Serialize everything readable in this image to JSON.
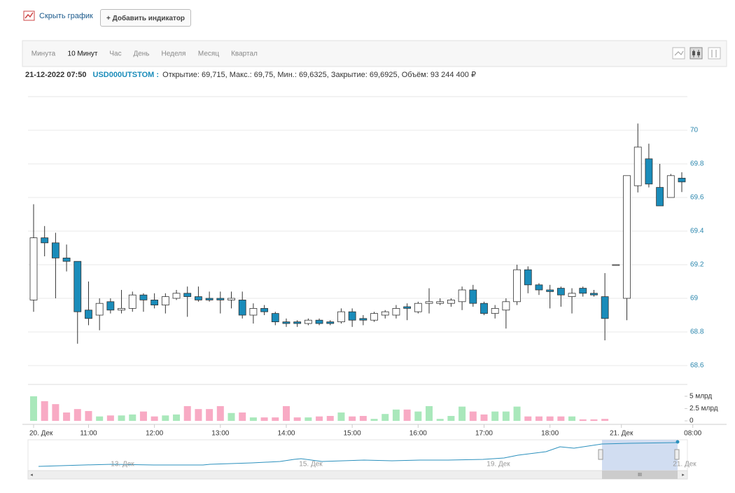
{
  "toolbar": {
    "hide_chart": "Скрыть график",
    "add_indicator": "+ Добавить индикатор"
  },
  "tabs": [
    "Минута",
    "10 Минут",
    "Час",
    "День",
    "Неделя",
    "Месяц",
    "Квартал"
  ],
  "active_tab": 1,
  "info": {
    "datetime": "21-12-2022 07:50",
    "ticker": "USD000UTSTOM :",
    "fields": "Открытие: 69,715, Макс.: 69,75, Мин.: 69,6325, Закрытие: 69,6925, Объём: 93 244 400 ₽"
  },
  "chart_data": [
    {
      "type": "candlestick",
      "up_color": "#ffffff",
      "down_color": "#1a8cba",
      "grid": true,
      "open": [
        68.99,
        69.36,
        69.33,
        69.24,
        69.22,
        68.93,
        68.9,
        68.98,
        68.93,
        68.94,
        69.02,
        68.99,
        68.96,
        69.0,
        69.03,
        69.01,
        69.0,
        69.0,
        68.99,
        68.99,
        68.9,
        68.94,
        68.91,
        68.86,
        68.86,
        68.85,
        68.87,
        68.86,
        68.86,
        68.92,
        68.88,
        68.87,
        68.9,
        68.9,
        68.95,
        68.92,
        68.97,
        68.97,
        68.97,
        68.98,
        69.05,
        68.97,
        68.91,
        68.93,
        68.98,
        69.17,
        69.08,
        69.05,
        69.06,
        69.01,
        69.06,
        69.03,
        69.01,
        69.2,
        69.0,
        69.67,
        69.83,
        69.66,
        69.6,
        69.715
      ],
      "high": [
        69.56,
        69.43,
        69.39,
        69.32,
        69.22,
        69.1,
        69.0,
        69.0,
        69.05,
        69.04,
        69.03,
        69.03,
        69.03,
        69.05,
        69.07,
        69.07,
        69.04,
        69.04,
        69.04,
        69.04,
        68.97,
        68.96,
        68.92,
        68.88,
        68.87,
        68.88,
        68.88,
        68.87,
        68.94,
        68.94,
        68.9,
        68.92,
        68.93,
        68.96,
        68.97,
        68.98,
        69.06,
        69.0,
        69.0,
        69.07,
        69.08,
        68.98,
        68.96,
        69.0,
        69.2,
        69.19,
        69.09,
        69.08,
        69.07,
        69.06,
        69.07,
        69.05,
        69.15,
        69.2,
        69.73,
        70.04,
        69.92,
        69.8,
        69.74,
        69.75
      ],
      "low": [
        68.92,
        69.25,
        69.0,
        69.16,
        68.73,
        68.84,
        68.81,
        68.91,
        68.91,
        68.92,
        68.92,
        68.94,
        68.91,
        68.99,
        68.89,
        68.98,
        68.98,
        68.91,
        68.94,
        68.88,
        68.85,
        68.9,
        68.84,
        68.83,
        68.83,
        68.84,
        68.84,
        68.84,
        68.85,
        68.83,
        68.84,
        68.86,
        68.88,
        68.88,
        68.87,
        68.91,
        68.91,
        68.96,
        68.95,
        68.93,
        68.95,
        68.9,
        68.88,
        68.82,
        68.96,
        69.03,
        69.02,
        68.94,
        68.95,
        68.91,
        69.01,
        69.01,
        68.75,
        69.2,
        68.87,
        69.63,
        69.66,
        69.55,
        69.6,
        69.6325
      ],
      "close": [
        69.36,
        69.33,
        69.24,
        69.22,
        68.92,
        68.88,
        68.97,
        68.93,
        68.94,
        69.02,
        68.99,
        68.96,
        69.01,
        69.03,
        69.01,
        68.99,
        68.99,
        68.99,
        69.0,
        68.9,
        68.94,
        68.92,
        68.86,
        68.85,
        68.85,
        68.87,
        68.85,
        68.85,
        68.92,
        68.87,
        68.87,
        68.91,
        68.92,
        68.94,
        68.94,
        68.97,
        68.98,
        68.98,
        68.99,
        69.05,
        68.97,
        68.91,
        68.94,
        68.98,
        69.17,
        69.08,
        69.05,
        69.04,
        69.02,
        69.03,
        69.03,
        69.02,
        68.88,
        69.2,
        69.73,
        69.9,
        69.68,
        69.55,
        69.73,
        69.6925
      ],
      "ylim": [
        68.52,
        70.2
      ],
      "yticks": [
        68.6,
        68.8,
        69,
        69.2,
        69.4,
        69.6,
        69.8,
        70
      ]
    },
    {
      "type": "bar",
      "up_color": "#a9e8bb",
      "down_color": "#f8aac4",
      "values": [
        5.0,
        4.0,
        3.4,
        1.7,
        2.4,
        2.0,
        0.9,
        1.1,
        1.1,
        1.3,
        1.9,
        0.9,
        1.1,
        1.3,
        3.0,
        2.4,
        2.4,
        3.0,
        1.6,
        1.7,
        0.7,
        0.7,
        0.7,
        3.0,
        0.7,
        0.7,
        0.9,
        1.0,
        1.7,
        0.9,
        1.0,
        0.4,
        1.4,
        2.3,
        2.3,
        1.9,
        3.0,
        0.4,
        1.0,
        2.9,
        1.9,
        1.3,
        1.9,
        1.9,
        2.9,
        0.9,
        0.9,
        0.9,
        0.9,
        0.9,
        0.3,
        0.3,
        0.4,
        null,
        null,
        null,
        null,
        null,
        null,
        null
      ],
      "ylim": [
        0,
        7.4
      ],
      "yticks": [
        0,
        {
          "value": 2.5,
          "label": "2.5 млрд"
        },
        {
          "value": 5,
          "label": "5 млрд"
        }
      ],
      "xticks": [
        {
          "value": 0,
          "label": "20. Дек"
        },
        {
          "value": 5,
          "label": "11:00"
        },
        {
          "value": 11,
          "label": "12:00"
        },
        {
          "value": 17,
          "label": "13:00"
        },
        {
          "value": 23,
          "label": "14:00"
        },
        {
          "value": 29,
          "label": "15:00"
        },
        {
          "value": 35,
          "label": "16:00"
        },
        {
          "value": 41,
          "label": "17:00"
        },
        {
          "value": 47,
          "label": "18:00"
        },
        {
          "value": 53.5,
          "label": "21. Дек"
        },
        {
          "value": 60,
          "label": "08:00"
        }
      ]
    }
  ],
  "navigator": {
    "labels": [
      "13. Дек",
      "15. Дек",
      "19. Дек",
      "21. Дек"
    ]
  }
}
